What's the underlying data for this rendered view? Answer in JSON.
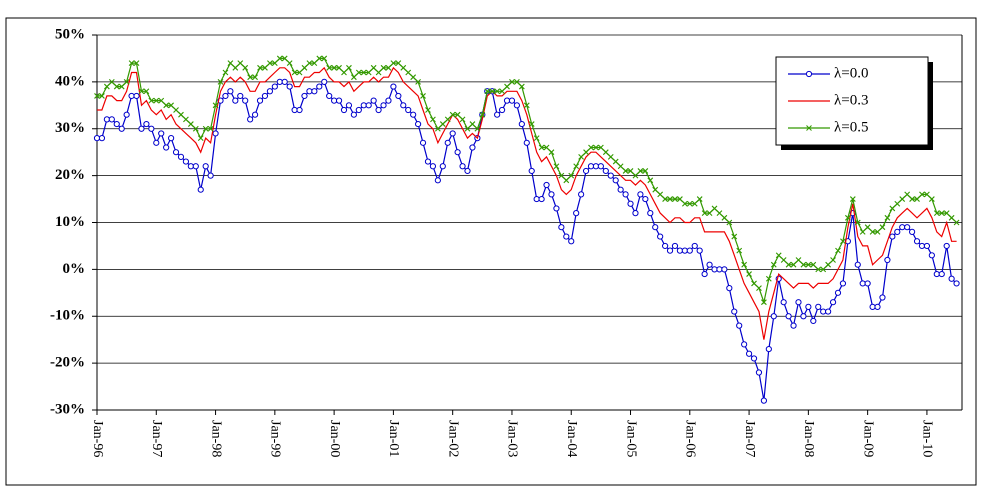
{
  "chart_data": {
    "type": "line",
    "categories": [
      "Jan-96",
      null,
      null,
      null,
      null,
      null,
      null,
      null,
      null,
      null,
      null,
      null,
      "Jan-97",
      null,
      null,
      null,
      null,
      null,
      null,
      null,
      null,
      null,
      null,
      null,
      "Jan-98",
      null,
      null,
      null,
      null,
      null,
      null,
      null,
      null,
      null,
      null,
      null,
      "Jan-99",
      null,
      null,
      null,
      null,
      null,
      null,
      null,
      null,
      null,
      null,
      null,
      "Jan-00",
      null,
      null,
      null,
      null,
      null,
      null,
      null,
      null,
      null,
      null,
      null,
      "Jan-01",
      null,
      null,
      null,
      null,
      null,
      null,
      null,
      null,
      null,
      null,
      null,
      "Jan-02",
      null,
      null,
      null,
      null,
      null,
      null,
      null,
      null,
      null,
      null,
      null,
      "Jan-03",
      null,
      null,
      null,
      null,
      null,
      null,
      null,
      null,
      null,
      null,
      null,
      "Jan-04",
      null,
      null,
      null,
      null,
      null,
      null,
      null,
      null,
      null,
      null,
      null,
      "Jan-05",
      null,
      null,
      null,
      null,
      null,
      null,
      null,
      null,
      null,
      null,
      null,
      "Jan-06",
      null,
      null,
      null,
      null,
      null,
      null,
      null,
      null,
      null,
      null,
      null,
      "Jan-07",
      null,
      null,
      null,
      null,
      null,
      null,
      null,
      null,
      null,
      null,
      null,
      "Jan-08",
      null,
      null,
      null,
      null,
      null,
      null,
      null,
      null,
      null,
      null,
      null,
      "Jan-09",
      null,
      null,
      null,
      null,
      null,
      null,
      null,
      null,
      null,
      null,
      null,
      "Jan-10",
      null,
      null,
      null,
      null,
      null,
      null
    ],
    "series": [
      {
        "name": "λ=0.0",
        "color": "#0000cc",
        "marker": "circle",
        "values": [
          28,
          28,
          32,
          32,
          31,
          30,
          33,
          37,
          37,
          30,
          31,
          30,
          27,
          29,
          26,
          28,
          25,
          24,
          23,
          22,
          22,
          17,
          22,
          20,
          29,
          36,
          37,
          38,
          36,
          37,
          36,
          32,
          33,
          36,
          37,
          38,
          39,
          40,
          40,
          39,
          34,
          34,
          37,
          38,
          38,
          39,
          40,
          37,
          36,
          36,
          34,
          35,
          33,
          34,
          35,
          35,
          36,
          34,
          35,
          36,
          39,
          37,
          35,
          34,
          33,
          31,
          27,
          23,
          22,
          19,
          22,
          27,
          29,
          25,
          22,
          21,
          26,
          28,
          33,
          38,
          38,
          33,
          34,
          36,
          36,
          35,
          31,
          27,
          21,
          15,
          15,
          18,
          16,
          13,
          9,
          7,
          6,
          12,
          16,
          21,
          22,
          22,
          22,
          21,
          20,
          19,
          17,
          16,
          14,
          12,
          16,
          15,
          12,
          9,
          7,
          5,
          4,
          5,
          4,
          4,
          4,
          5,
          4,
          -1,
          1,
          0,
          0,
          0,
          -4,
          -9,
          -12,
          -16,
          -18,
          -19,
          -22,
          -28,
          -17,
          -10,
          -2,
          -7,
          -10,
          -12,
          -7,
          -10,
          -8,
          -11,
          -8,
          -9,
          -9,
          -7,
          -5,
          -3,
          6,
          12,
          1,
          -3,
          -3,
          -8,
          -8,
          -6,
          2,
          7,
          8,
          9,
          9,
          8,
          6,
          5,
          5,
          3,
          -1,
          -1,
          5,
          -2,
          -3
        ]
      },
      {
        "name": "λ=0.3",
        "color": "#ee0000",
        "marker": "none",
        "values": [
          34,
          34,
          37,
          37,
          36,
          36,
          38,
          42,
          42,
          35,
          36,
          34,
          33,
          34,
          32,
          33,
          31,
          30,
          29,
          28,
          27,
          25,
          28,
          27,
          33,
          38,
          40,
          41,
          40,
          41,
          40,
          38,
          38,
          40,
          40,
          41,
          42,
          43,
          43,
          42,
          39,
          39,
          41,
          41,
          42,
          42,
          43,
          41,
          40,
          40,
          39,
          40,
          38,
          39,
          40,
          40,
          41,
          40,
          41,
          41,
          43,
          42,
          40,
          39,
          38,
          37,
          34,
          31,
          30,
          27,
          29,
          31,
          33,
          32,
          30,
          28,
          29,
          28,
          32,
          37,
          38,
          37,
          37,
          38,
          38,
          38,
          36,
          33,
          29,
          25,
          23,
          24,
          22,
          20,
          17,
          16,
          17,
          20,
          22,
          24,
          25,
          25,
          24,
          23,
          22,
          21,
          20,
          19,
          19,
          18,
          19,
          18,
          16,
          14,
          12,
          11,
          10,
          11,
          11,
          10,
          10,
          11,
          11,
          8,
          8,
          8,
          8,
          8,
          6,
          3,
          0,
          -3,
          -5,
          -7,
          -9,
          -15,
          -9,
          -5,
          -1,
          -2,
          -3,
          -4,
          -3,
          -3,
          -3,
          -4,
          -3,
          -3,
          -3,
          -2,
          0,
          2,
          9,
          14,
          7,
          5,
          5,
          1,
          2,
          3,
          6,
          9,
          11,
          12,
          13,
          12,
          11,
          12,
          13,
          11,
          8,
          7,
          10,
          6,
          6
        ]
      },
      {
        "name": "λ=0.5",
        "color": "#339900",
        "marker": "x",
        "values": [
          37,
          37,
          39,
          40,
          39,
          39,
          40,
          44,
          44,
          38,
          38,
          36,
          36,
          36,
          35,
          35,
          34,
          33,
          32,
          31,
          30,
          28,
          30,
          30,
          35,
          40,
          42,
          44,
          43,
          44,
          43,
          41,
          41,
          43,
          43,
          44,
          44,
          45,
          45,
          44,
          42,
          42,
          43,
          44,
          44,
          45,
          45,
          43,
          43,
          43,
          42,
          43,
          41,
          42,
          42,
          42,
          43,
          42,
          43,
          43,
          44,
          44,
          43,
          42,
          41,
          40,
          37,
          34,
          32,
          30,
          31,
          32,
          33,
          33,
          32,
          30,
          31,
          30,
          33,
          38,
          38,
          38,
          38,
          39,
          40,
          40,
          39,
          35,
          31,
          28,
          26,
          26,
          25,
          22,
          20,
          19,
          20,
          22,
          24,
          25,
          26,
          26,
          26,
          25,
          24,
          23,
          22,
          21,
          21,
          20,
          21,
          21,
          19,
          17,
          16,
          15,
          15,
          15,
          15,
          14,
          14,
          14,
          15,
          12,
          12,
          13,
          12,
          11,
          10,
          7,
          4,
          1,
          -1,
          -3,
          -4,
          -7,
          -2,
          1,
          3,
          2,
          1,
          1,
          2,
          1,
          1,
          1,
          0,
          0,
          1,
          2,
          4,
          6,
          11,
          15,
          10,
          8,
          9,
          8,
          8,
          9,
          11,
          13,
          14,
          15,
          16,
          15,
          15,
          16,
          16,
          15,
          12,
          12,
          12,
          11,
          10
        ]
      }
    ],
    "ylim": [
      -30,
      50
    ],
    "yticks": [
      {
        "value": -30,
        "label": "-30%"
      },
      {
        "value": -20,
        "label": "-20%"
      },
      {
        "value": -10,
        "label": "-10%"
      },
      {
        "value": 0,
        "label": "0%"
      },
      {
        "value": 10,
        "label": "10%"
      },
      {
        "value": 20,
        "label": "20%"
      },
      {
        "value": 30,
        "label": "30%"
      },
      {
        "value": 40,
        "label": "40%"
      },
      {
        "value": 50,
        "label": "50%"
      }
    ],
    "grid": true,
    "legend": "upper right"
  }
}
